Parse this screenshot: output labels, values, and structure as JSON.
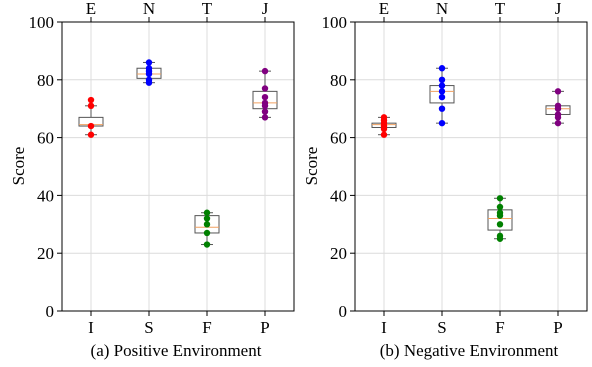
{
  "chart_data": [
    {
      "type": "box",
      "title": "",
      "caption": "(a) Positive Environment",
      "xlabel": "",
      "ylabel": "Score",
      "ylim": [
        0,
        100
      ],
      "yticks": [
        0,
        20,
        40,
        60,
        80,
        100
      ],
      "grid": true,
      "categories_bottom": [
        "I",
        "S",
        "F",
        "P"
      ],
      "categories_top": [
        "E",
        "N",
        "T",
        "J"
      ],
      "series": [
        {
          "category": "I",
          "color": "#ff0000",
          "q1": 64,
          "median": 64.5,
          "q3": 67,
          "whisker_low": 61,
          "whisker_high": 71,
          "points": [
            61,
            64,
            71,
            73
          ]
        },
        {
          "category": "S",
          "color": "#0000ff",
          "q1": 80.5,
          "median": 82,
          "q3": 84,
          "whisker_low": 79,
          "whisker_high": 86,
          "points": [
            79,
            80,
            82,
            83,
            84,
            86
          ]
        },
        {
          "category": "F",
          "color": "#008000",
          "q1": 27,
          "median": 29,
          "q3": 33,
          "whisker_low": 23,
          "whisker_high": 34,
          "points": [
            23,
            27,
            30,
            32,
            34
          ]
        },
        {
          "category": "P",
          "color": "#800080",
          "q1": 70,
          "median": 72,
          "q3": 76,
          "whisker_low": 67,
          "whisker_high": 83,
          "points": [
            67,
            69,
            71,
            72,
            74,
            77,
            83
          ]
        }
      ]
    },
    {
      "type": "box",
      "title": "",
      "caption": "(b) Negative Environment",
      "xlabel": "",
      "ylabel": "Score",
      "ylim": [
        0,
        100
      ],
      "yticks": [
        0,
        20,
        40,
        60,
        80,
        100
      ],
      "grid": true,
      "categories_bottom": [
        "I",
        "S",
        "F",
        "P"
      ],
      "categories_top": [
        "E",
        "N",
        "T",
        "J"
      ],
      "series": [
        {
          "category": "I",
          "color": "#ff0000",
          "q1": 63.5,
          "median": 64.5,
          "q3": 65,
          "whisker_low": 61,
          "whisker_high": 67,
          "points": [
            61,
            63,
            64,
            65,
            66,
            67
          ]
        },
        {
          "category": "S",
          "color": "#0000ff",
          "q1": 72,
          "median": 76,
          "q3": 78,
          "whisker_low": 65,
          "whisker_high": 84,
          "points": [
            65,
            70,
            74,
            76,
            78,
            80,
            84
          ]
        },
        {
          "category": "F",
          "color": "#008000",
          "q1": 28,
          "median": 32,
          "q3": 35,
          "whisker_low": 25,
          "whisker_high": 39,
          "points": [
            25,
            26,
            30,
            33,
            34,
            36,
            39
          ]
        },
        {
          "category": "P",
          "color": "#800080",
          "q1": 68,
          "median": 70,
          "q3": 71,
          "whisker_low": 65,
          "whisker_high": 76,
          "points": [
            65,
            67,
            68,
            70,
            71,
            76
          ]
        }
      ]
    }
  ]
}
